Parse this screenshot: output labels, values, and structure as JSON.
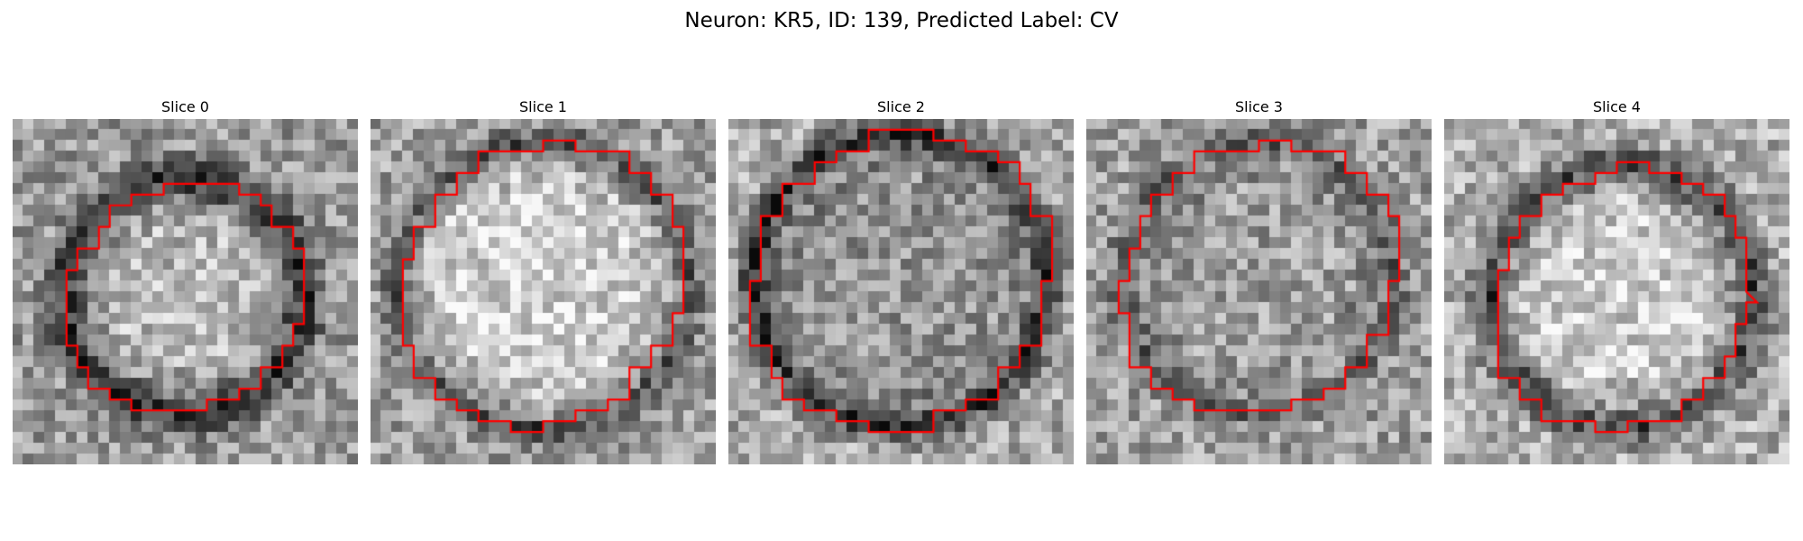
{
  "figure": {
    "title": "Neuron: KR5, ID: 139, Predicted Label: CV"
  },
  "panels": [
    {
      "title": "Slice 0"
    },
    {
      "title": "Slice 1"
    },
    {
      "title": "Slice 2"
    },
    {
      "title": "Slice 3"
    },
    {
      "title": "Slice 4"
    }
  ],
  "colors": {
    "contour": "#ff0000",
    "colormap": "grayscale"
  }
}
